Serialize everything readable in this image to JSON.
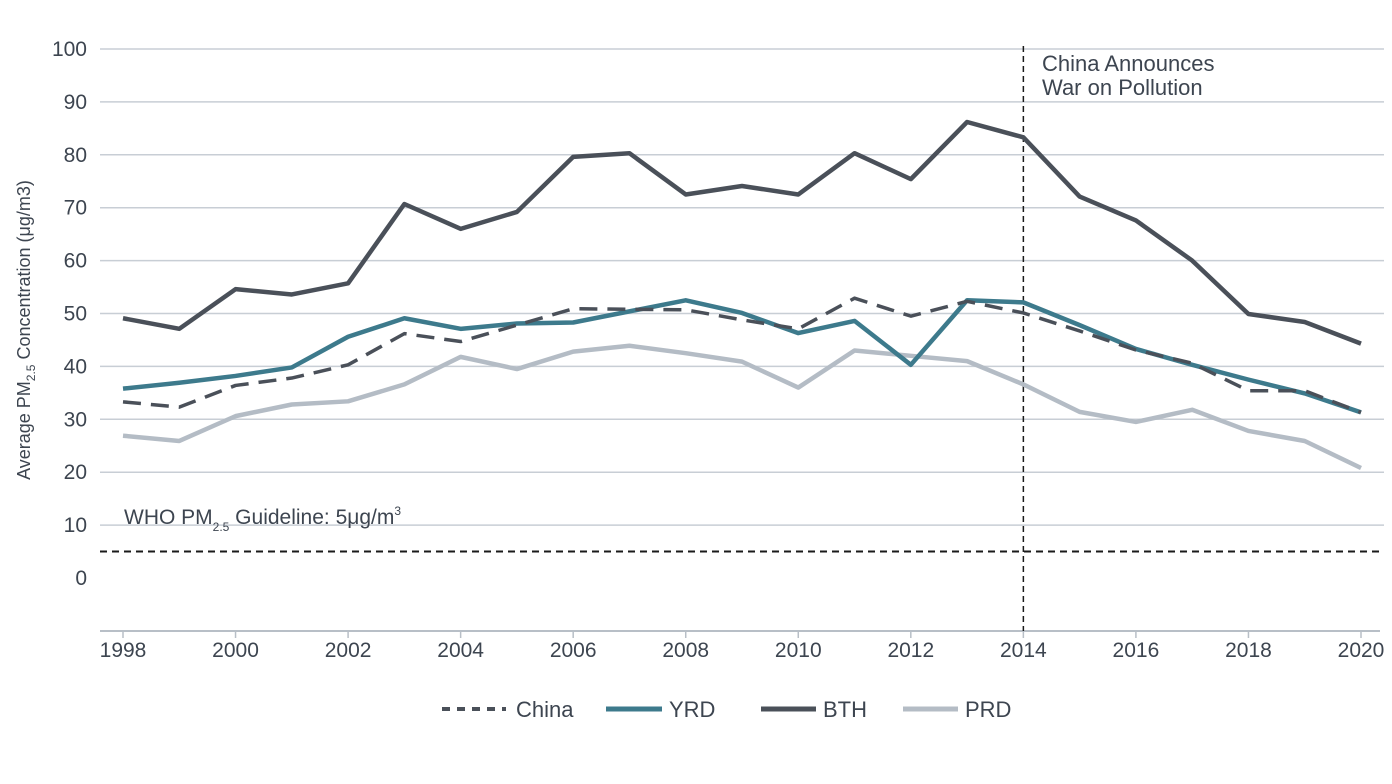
{
  "chart_data": {
    "type": "line",
    "ylabel_main": "Average PM",
    "ylabel_sub": "2.5",
    "ylabel_rest": " Concentration (μg/m3)",
    "ylim": [
      0,
      100
    ],
    "yticks": [
      0,
      10,
      20,
      30,
      40,
      50,
      60,
      70,
      80,
      90,
      100
    ],
    "xlim": [
      1998,
      2020
    ],
    "xticks": [
      1998,
      2000,
      2002,
      2004,
      2006,
      2008,
      2010,
      2012,
      2014,
      2016,
      2018,
      2020
    ],
    "grid": true,
    "legend_position": "bottom",
    "x": [
      1998,
      1999,
      2000,
      2001,
      2002,
      2003,
      2004,
      2005,
      2006,
      2007,
      2008,
      2009,
      2010,
      2011,
      2012,
      2013,
      2014,
      2015,
      2016,
      2017,
      2018,
      2019,
      2020
    ],
    "series": [
      {
        "name": "China",
        "color": "#4a5059",
        "style": "dashed",
        "values": [
          33.3,
          32.3,
          36.4,
          37.8,
          40.3,
          46.2,
          44.7,
          47.8,
          50.9,
          50.8,
          50.7,
          48.8,
          47.1,
          52.9,
          49.5,
          52.3,
          50.1,
          46.7,
          43.1,
          40.6,
          35.4,
          35.4,
          31.3
        ]
      },
      {
        "name": "YRD",
        "color": "#3d7a8c",
        "style": "solid",
        "values": [
          35.8,
          36.9,
          38.2,
          39.8,
          45.6,
          49.1,
          47.1,
          48.1,
          48.3,
          50.4,
          52.5,
          50.1,
          46.3,
          48.6,
          40.3,
          52.5,
          52.1,
          47.8,
          43.3,
          40.3,
          37.5,
          34.9,
          31.3
        ]
      },
      {
        "name": "BTH",
        "color": "#4a5059",
        "style": "solid",
        "values": [
          49.1,
          47.1,
          54.6,
          53.6,
          55.7,
          70.7,
          66.0,
          69.2,
          79.6,
          80.3,
          72.5,
          74.1,
          72.5,
          80.3,
          75.4,
          86.2,
          83.3,
          72.1,
          67.6,
          60.0,
          49.9,
          48.4,
          44.3
        ]
      },
      {
        "name": "PRD",
        "color": "#b4bcc5",
        "style": "solid",
        "values": [
          26.9,
          25.9,
          30.6,
          32.8,
          33.4,
          36.6,
          41.8,
          39.5,
          42.8,
          43.9,
          42.5,
          40.9,
          36.0,
          43.0,
          42.0,
          41.0,
          36.6,
          31.4,
          29.5,
          31.8,
          27.8,
          25.9,
          20.8
        ]
      }
    ],
    "reference_line": {
      "value": 5,
      "style": "dashed",
      "label_pre": "WHO PM",
      "label_sub": "2.5",
      "label_post": " Guideline: 5μg/m",
      "label_sup": "3"
    },
    "event_line": {
      "x": 2014,
      "style": "dashed",
      "label_line1": "China Announces",
      "label_line2": "War on Pollution"
    }
  }
}
